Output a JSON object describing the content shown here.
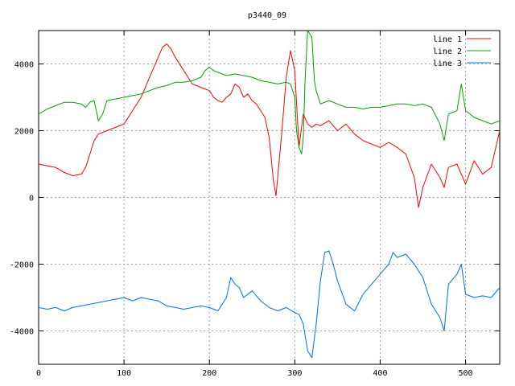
{
  "chart_data": {
    "type": "line",
    "title": "p3440_09",
    "xlabel": "",
    "ylabel": "",
    "xlim": [
      0,
      540
    ],
    "ylim": [
      -5000,
      5000
    ],
    "xticks": [
      0,
      100,
      200,
      300,
      400,
      500
    ],
    "yticks": [
      -4000,
      -2000,
      0,
      2000,
      4000
    ],
    "grid": true,
    "legend_position": "top-right",
    "series": [
      {
        "name": "line 1",
        "color": "#ff0000",
        "x": [
          0,
          10,
          20,
          30,
          40,
          50,
          55,
          60,
          65,
          70,
          80,
          90,
          100,
          110,
          120,
          130,
          140,
          145,
          150,
          155,
          160,
          170,
          175,
          180,
          190,
          200,
          205,
          210,
          215,
          220,
          225,
          230,
          235,
          240,
          245,
          250,
          255,
          260,
          265,
          270,
          275,
          278,
          280,
          285,
          290,
          295,
          300,
          305,
          310,
          315,
          320,
          325,
          330,
          340,
          350,
          360,
          370,
          380,
          390,
          400,
          410,
          420,
          430,
          440,
          445,
          450,
          460,
          470,
          475,
          480,
          490,
          500,
          510,
          520,
          530,
          540
        ],
        "y": [
          1000,
          950,
          900,
          750,
          650,
          700,
          900,
          1300,
          1700,
          1900,
          2000,
          2100,
          2200,
          2600,
          3000,
          3600,
          4200,
          4500,
          4600,
          4450,
          4200,
          3800,
          3600,
          3400,
          3300,
          3200,
          3000,
          2900,
          2850,
          3000,
          3100,
          3400,
          3300,
          3000,
          3100,
          2900,
          2800,
          2600,
          2400,
          1800,
          500,
          50,
          600,
          2000,
          3600,
          4400,
          3800,
          1500,
          2500,
          2200,
          2100,
          2200,
          2150,
          2300,
          2000,
          2200,
          1900,
          1700,
          1600,
          1500,
          1650,
          1500,
          1300,
          600,
          -300,
          300,
          1000,
          600,
          300,
          900,
          1000,
          400,
          1100,
          700,
          900,
          2000
        ]
      },
      {
        "name": "line 2",
        "color": "#00a000",
        "x": [
          0,
          10,
          20,
          30,
          40,
          50,
          55,
          60,
          65,
          70,
          75,
          80,
          90,
          100,
          110,
          120,
          130,
          140,
          150,
          160,
          170,
          180,
          190,
          195,
          200,
          205,
          210,
          220,
          230,
          240,
          250,
          260,
          270,
          280,
          290,
          295,
          300,
          302,
          305,
          308,
          310,
          312,
          315,
          320,
          323,
          325,
          330,
          340,
          350,
          360,
          370,
          380,
          390,
          400,
          410,
          420,
          430,
          440,
          450,
          460,
          470,
          475,
          480,
          490,
          495,
          500,
          510,
          520,
          530,
          540
        ],
        "y": [
          2500,
          2650,
          2750,
          2850,
          2850,
          2800,
          2700,
          2850,
          2900,
          2300,
          2500,
          2900,
          2950,
          3000,
          3050,
          3100,
          3200,
          3300,
          3350,
          3450,
          3450,
          3500,
          3600,
          3800,
          3900,
          3800,
          3750,
          3650,
          3700,
          3650,
          3600,
          3500,
          3450,
          3400,
          3450,
          3400,
          3000,
          2000,
          1500,
          1300,
          1800,
          3500,
          5000,
          4800,
          3500,
          3200,
          2800,
          2900,
          2800,
          2700,
          2700,
          2650,
          2700,
          2700,
          2750,
          2800,
          2800,
          2750,
          2800,
          2700,
          2200,
          1700,
          2500,
          2600,
          3400,
          2600,
          2400,
          2300,
          2200,
          2300
        ]
      },
      {
        "name": "line 3",
        "color": "#0070e0",
        "x": [
          0,
          10,
          20,
          30,
          40,
          50,
          60,
          70,
          80,
          90,
          100,
          110,
          120,
          130,
          140,
          150,
          160,
          170,
          180,
          190,
          200,
          210,
          220,
          225,
          230,
          235,
          240,
          250,
          260,
          270,
          280,
          290,
          300,
          305,
          310,
          315,
          320,
          325,
          330,
          335,
          340,
          345,
          350,
          360,
          370,
          380,
          390,
          400,
          410,
          415,
          420,
          430,
          440,
          450,
          460,
          470,
          475,
          480,
          490,
          495,
          500,
          510,
          520,
          530,
          540
        ],
        "y": [
          -3300,
          -3350,
          -3300,
          -3400,
          -3300,
          -3250,
          -3200,
          -3150,
          -3100,
          -3050,
          -3000,
          -3100,
          -3000,
          -3050,
          -3100,
          -3250,
          -3300,
          -3350,
          -3300,
          -3250,
          -3300,
          -3400,
          -3000,
          -2400,
          -2600,
          -2700,
          -3000,
          -2800,
          -3100,
          -3300,
          -3400,
          -3300,
          -3450,
          -3500,
          -3800,
          -4600,
          -4800,
          -3800,
          -2500,
          -1650,
          -1600,
          -2000,
          -2500,
          -3200,
          -3400,
          -2900,
          -2600,
          -2300,
          -2000,
          -1650,
          -1800,
          -1700,
          -2000,
          -2400,
          -3200,
          -3600,
          -4000,
          -2600,
          -2300,
          -2000,
          -2900,
          -3000,
          -2950,
          -3000,
          -2700
        ]
      }
    ]
  }
}
